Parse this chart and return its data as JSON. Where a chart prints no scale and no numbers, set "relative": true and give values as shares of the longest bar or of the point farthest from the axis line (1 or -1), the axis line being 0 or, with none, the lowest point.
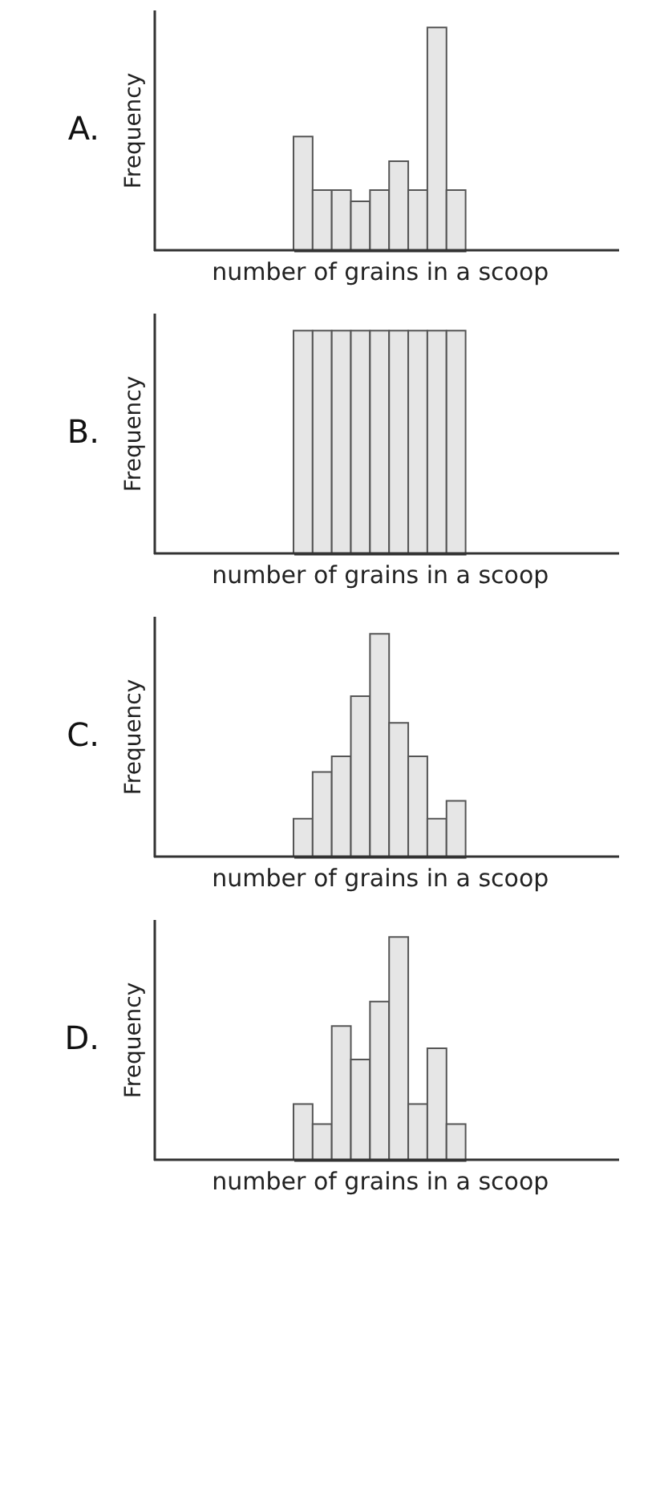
{
  "chart_data": [
    {
      "type": "bar",
      "annotations": [
        "A."
      ],
      "xlabel": "number of grains in a scoop",
      "ylabel": "Frequency",
      "relative": true,
      "tick_labels": false,
      "grid": false,
      "color": "#e6e6e6",
      "categories": [
        null,
        null,
        null,
        null,
        null,
        null,
        null,
        null,
        null
      ],
      "values": [
        0.51,
        0.27,
        0.27,
        0.22,
        0.27,
        0.4,
        0.27,
        1,
        0.27
      ]
    },
    {
      "type": "bar",
      "annotations": [
        "B."
      ],
      "xlabel": "number of grains in a scoop",
      "ylabel": "Frequency",
      "relative": true,
      "tick_labels": false,
      "grid": false,
      "color": "#e6e6e6",
      "categories": [
        null,
        null,
        null,
        null,
        null,
        null,
        null,
        null,
        null
      ],
      "values": [
        1,
        1,
        1,
        1,
        1,
        1,
        1,
        1,
        1
      ]
    },
    {
      "type": "bar",
      "annotations": [
        "C."
      ],
      "xlabel": "number of grains in a scoop",
      "ylabel": "Frequency",
      "relative": true,
      "tick_labels": false,
      "grid": false,
      "color": "#e6e6e6",
      "categories": [
        null,
        null,
        null,
        null,
        null,
        null,
        null,
        null,
        null
      ],
      "values": [
        0.17,
        0.38,
        0.45,
        0.72,
        1,
        0.6,
        0.45,
        0.17,
        0.25
      ]
    },
    {
      "type": "bar",
      "annotations": [
        "D."
      ],
      "xlabel": "number of grains in a scoop",
      "ylabel": "Frequency",
      "relative": true,
      "tick_labels": false,
      "grid": false,
      "color": "#e6e6e6",
      "categories": [
        null,
        null,
        null,
        null,
        null,
        null,
        null,
        null,
        null
      ],
      "values": [
        0.25,
        0.16,
        0.6,
        0.45,
        0.71,
        1,
        0.25,
        0.5,
        0.16
      ]
    }
  ]
}
